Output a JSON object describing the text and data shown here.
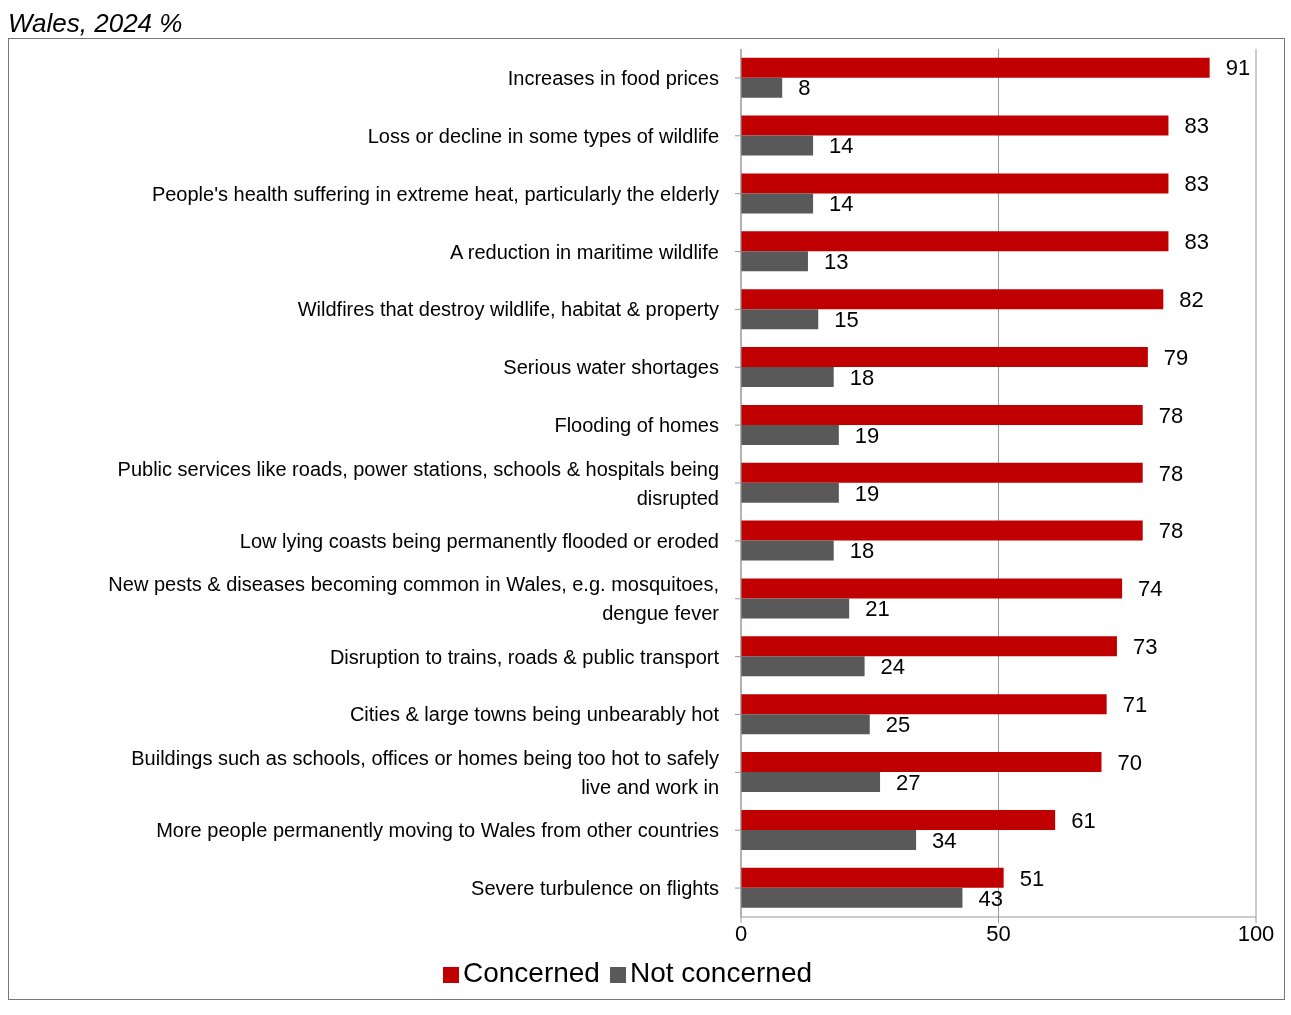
{
  "chart_data": {
    "type": "bar",
    "orientation": "horizontal",
    "title": "Wales, 2024 %",
    "categories": [
      "Increases in food prices",
      "Loss or decline in some types of wildlife",
      "People's health suffering in extreme heat, particularly the elderly",
      "A reduction in maritime wildlife",
      "Wildfires that destroy wildlife, habitat & property",
      "Serious water shortages",
      "Flooding of homes",
      "Public services like roads, power  stations, schools & hospitals being disrupted",
      "Low lying coasts being permanently flooded or eroded",
      "New pests & diseases becoming common in Wales, e.g. mosquitoes, dengue fever",
      "Disruption to trains, roads & public transport",
      "Cities & large towns being unbearably hot",
      "Buildings  such as schools, offices or homes being too hot to safely live and work in",
      "More people permanently moving to Wales from other countries",
      "Severe turbulence on flights"
    ],
    "series": [
      {
        "name": "Concerned",
        "color": "#c00000",
        "values": [
          91,
          83,
          83,
          83,
          82,
          79,
          78,
          78,
          78,
          74,
          73,
          71,
          70,
          61,
          51
        ]
      },
      {
        "name": "Not concerned",
        "color": "#595959",
        "values": [
          8,
          14,
          14,
          13,
          15,
          18,
          19,
          19,
          18,
          21,
          24,
          25,
          27,
          34,
          43
        ]
      }
    ],
    "xlim": [
      0,
      100
    ],
    "xticks": [
      0,
      50,
      100
    ],
    "grid": "x",
    "legend": "bottom",
    "data_labels": true
  }
}
